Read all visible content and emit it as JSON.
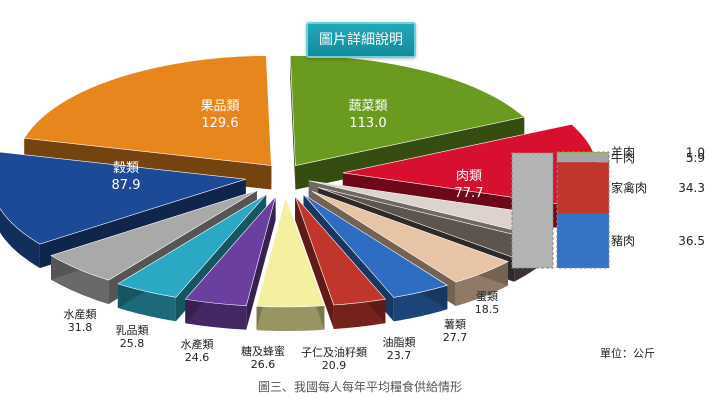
{
  "header": {
    "button_label": "圖片詳細說明"
  },
  "unit_label": "單位：公斤",
  "caption": "圖三、我國每人每年平均糧食供給情形",
  "chart_data": {
    "type": "pie",
    "title": "",
    "unit": "公斤",
    "slices": [
      {
        "name": "蔬菜類",
        "value": 113.0,
        "color": "#6a9a1f"
      },
      {
        "name": "肉類",
        "value": 77.7,
        "color": "#d8102f"
      },
      {
        "name": "",
        "value": 18.5,
        "color": "#ddd2cc"
      },
      {
        "name": "蛋類",
        "value": 18.5,
        "color": "#5d544e"
      },
      {
        "name": "薯類",
        "value": 27.7,
        "color": "#e8c4a6"
      },
      {
        "name": "油脂類",
        "value": 23.7,
        "color": "#2f6dc2"
      },
      {
        "name": "子仁及油籽類",
        "value": 20.9,
        "color": "#c0362c"
      },
      {
        "name": "糖及蜂蜜",
        "value": 26.6,
        "color": "#f5f0a0"
      },
      {
        "name": "水產類",
        "value": 24.6,
        "color": "#6b3fa0"
      },
      {
        "name": "乳品類",
        "value": 25.8,
        "color": "#2ba9c4"
      },
      {
        "name": "水産類",
        "value": 31.8,
        "color": "#a9a9a9"
      },
      {
        "name": "穀類",
        "value": 87.9,
        "color": "#1d4a96"
      },
      {
        "name": "果品類",
        "value": 129.6,
        "color": "#e8861e"
      }
    ],
    "breakdown": {
      "parent": "肉類",
      "items": [
        {
          "name": "羊肉",
          "value": 1.0,
          "color": "#9dbb3a"
        },
        {
          "name": "牛肉",
          "value": 5.9,
          "color": "#a5a5a5"
        },
        {
          "name": "家禽肉",
          "value": 34.3,
          "color": "#c0362c"
        },
        {
          "name": "豬肉",
          "value": 36.5,
          "color": "#3573c4"
        }
      ]
    }
  }
}
